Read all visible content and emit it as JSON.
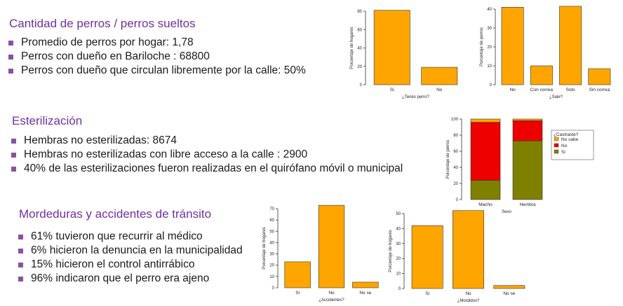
{
  "sections": {
    "cantidad": {
      "title": "Cantidad de perros / perros sueltos",
      "bullets": [
        "Promedio de perros por hogar:  1,78",
        "Perros con dueño en Bariloche :  68800",
        "Perros con dueño que circulan libremente por la calle:  50%"
      ]
    },
    "esterilizacion": {
      "title": "Esterilización",
      "bullets": [
        "Hembras no esterilizadas: 8674",
        "Hembras no esterilizadas con libre acceso a la calle : 2900",
        "40% de las esterilizaciones fueron realizadas en el quirófano móvil o municipal"
      ]
    },
    "mordeduras": {
      "title": "Mordeduras y accidentes de tránsito",
      "bullets": [
        "61% tuvieron que recurrir al médico",
        "6% hicieron la denuncia en la municipalidad",
        "15% hicieron el control antirrábico",
        "96% indicaron que el perro era ajeno"
      ]
    }
  },
  "chart_data": [
    {
      "id": "tenes",
      "type": "bar",
      "categories": [
        "Si",
        "No"
      ],
      "values": [
        81,
        19
      ],
      "ylim": [
        0,
        80
      ],
      "yticks": [
        0,
        20,
        40,
        60,
        80
      ],
      "ylabel": "Porcentaje de hogares",
      "xlabel": "¿Tenés perro?",
      "color": "#FFA500"
    },
    {
      "id": "sale",
      "type": "bar",
      "categories": [
        "No",
        "Con correa",
        "Solo",
        "Sin correa"
      ],
      "values": [
        41,
        10,
        41.5,
        8.5
      ],
      "ylim": [
        0,
        40
      ],
      "yticks": [
        0,
        10,
        20,
        30,
        40
      ],
      "ylabel": "Porcentaje de perros",
      "xlabel": "¿Sale?",
      "color": "#FFA500"
    },
    {
      "id": "castraste",
      "type": "bar",
      "stacked": true,
      "categories": [
        "Macho",
        "Hembra"
      ],
      "series": [
        {
          "name": "Si",
          "values": [
            24,
            73
          ],
          "color": "#808000"
        },
        {
          "name": "No",
          "values": [
            72,
            25
          ],
          "color": "#EE0000"
        },
        {
          "name": "No sabe",
          "values": [
            4,
            2
          ],
          "color": "#FFA500"
        }
      ],
      "legend_title": "¿Castraste?",
      "legend_order": [
        "No sabe",
        "No",
        "Si"
      ],
      "ylim": [
        0,
        100
      ],
      "yticks": [
        0,
        20,
        40,
        60,
        80,
        100
      ],
      "ylabel": "Porcentaje de perros",
      "xlabel": "Sexo"
    },
    {
      "id": "accidentes",
      "type": "bar",
      "categories": [
        "Si",
        "No",
        "No se"
      ],
      "values": [
        23,
        73,
        5
      ],
      "ylim": [
        0,
        70
      ],
      "yticks": [
        0,
        10,
        20,
        30,
        40,
        50,
        60,
        70
      ],
      "ylabel": "Porcentaje de hogares",
      "xlabel": "¿Accidentes?",
      "color": "#FFA500"
    },
    {
      "id": "mordidos",
      "type": "bar",
      "categories": [
        "Si",
        "No",
        "No se"
      ],
      "values": [
        42,
        52,
        2
      ],
      "ylim": [
        0,
        50
      ],
      "yticks": [
        0,
        10,
        20,
        30,
        40,
        50
      ],
      "ylabel": "Porcentaje de hogares",
      "xlabel": "¿Mordidos?",
      "color": "#FFA500"
    }
  ]
}
